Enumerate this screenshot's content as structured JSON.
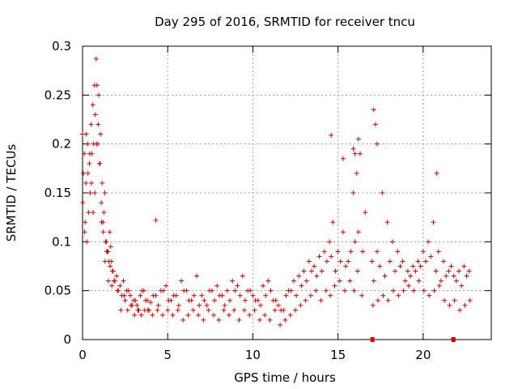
{
  "chart_data": {
    "type": "scatter",
    "title": "Day 295 of 2016, SRMTID for receiver tncu",
    "xlabel": "GPS time / hours",
    "ylabel": "SRMTID / TECUs",
    "xlim": [
      0,
      24
    ],
    "ylim": [
      0,
      0.3
    ],
    "xticks": [
      0,
      5,
      10,
      15,
      20
    ],
    "xtick_labels": [
      "0",
      "5",
      "10",
      "15",
      "20"
    ],
    "yticks": [
      0,
      0.05,
      0.1,
      0.15,
      0.2,
      0.25,
      0.3
    ],
    "ytick_labels": [
      "0",
      "0.05",
      "0.1",
      "0.15",
      "0.2",
      "0.25",
      "0.3"
    ],
    "grid": true,
    "marker": "+",
    "color": "#dd0000",
    "series": [
      {
        "name": "SRMTID",
        "x": [
          0.0,
          0.1,
          0.2,
          0.3,
          0.4,
          0.5,
          0.6,
          0.7,
          0.8,
          0.85,
          0.9,
          1.0,
          1.1,
          1.2,
          1.3,
          1.4,
          1.5,
          1.6,
          1.7,
          1.8,
          2.0,
          2.2,
          2.4,
          2.6,
          2.8,
          3.0,
          3.2,
          3.4,
          3.6,
          3.8,
          4.0,
          4.3,
          4.6,
          4.9,
          5.2,
          5.5,
          5.8,
          6.1,
          6.4,
          6.7,
          7.0,
          7.3,
          7.6,
          7.9,
          8.2,
          8.5,
          8.8,
          9.1,
          9.4,
          9.7,
          10.0,
          10.3,
          10.6,
          10.9,
          11.2,
          11.5,
          11.8,
          12.1,
          12.4,
          12.7,
          13.0,
          13.3,
          13.6,
          13.9,
          14.2,
          14.5,
          14.7,
          15.0,
          15.3,
          15.6,
          15.9,
          16.1,
          16.3,
          16.6,
          17.0,
          17.3,
          17.6,
          17.9,
          18.2,
          18.5,
          18.8,
          19.1,
          19.4,
          19.7,
          20.0,
          20.3,
          20.6,
          20.9,
          21.2,
          21.5,
          21.8,
          22.1,
          22.4,
          22.7,
          0.05,
          0.15,
          0.25,
          0.35,
          0.45,
          0.55,
          0.65,
          0.75,
          0.95,
          1.05,
          1.15,
          1.25,
          1.35,
          1.45,
          1.55,
          1.65,
          1.75,
          1.9,
          2.1,
          2.3,
          2.5,
          2.7,
          2.9,
          3.1,
          3.3,
          3.5,
          3.7,
          3.9,
          4.15,
          4.45,
          4.75,
          5.05,
          5.35,
          5.65,
          5.95,
          6.25,
          6.55,
          6.85,
          7.15,
          7.45,
          7.75,
          8.05,
          8.35,
          8.65,
          8.95,
          9.25,
          9.55,
          9.85,
          10.15,
          10.45,
          10.75,
          11.05,
          11.35,
          11.65,
          11.95,
          12.25,
          12.55,
          12.85,
          13.15,
          13.45,
          13.75,
          14.05,
          14.35,
          14.6,
          14.85,
          15.15,
          15.45,
          15.75,
          16.0,
          16.2,
          16.45,
          17.1,
          17.45,
          17.75,
          18.05,
          18.35,
          18.65,
          18.95,
          19.25,
          19.55,
          19.85,
          20.15,
          20.45,
          20.75,
          21.05,
          21.35,
          21.65,
          21.95,
          22.25,
          22.55,
          0.02,
          0.12,
          0.22,
          0.32,
          0.42,
          0.52,
          0.62,
          0.72,
          0.82,
          0.92,
          1.02,
          1.12,
          1.22,
          1.32,
          1.42,
          1.52,
          1.62,
          1.72,
          1.85,
          2.05,
          2.25,
          2.45,
          2.65,
          2.85,
          3.05,
          3.25,
          3.45,
          3.65,
          3.85,
          4.1,
          4.4,
          4.7,
          5.0,
          5.3,
          5.6,
          5.9,
          6.2,
          6.5,
          6.8,
          7.1,
          7.4,
          7.7,
          8.0,
          8.3,
          8.6,
          8.9,
          9.2,
          9.5,
          9.8,
          10.1,
          10.4,
          10.7,
          11.0,
          11.3,
          11.6,
          11.9,
          12.2,
          12.5,
          12.8,
          13.1,
          13.4,
          13.7,
          14.0,
          14.3,
          14.55,
          14.8,
          15.1,
          15.4,
          15.7,
          15.95,
          16.15,
          16.4,
          17.05,
          17.35,
          17.65,
          17.95,
          18.25,
          18.55,
          18.85,
          19.15,
          19.45,
          19.75,
          20.05,
          20.35,
          20.65,
          20.95,
          21.25,
          21.55,
          21.85,
          22.15,
          22.45,
          22.75,
          4.3,
          14.6,
          15.9,
          16.2,
          17.1,
          17.2,
          17.3,
          20.8,
          15.3,
          16.0
        ],
        "y": [
          0.21,
          0.19,
          0.16,
          0.2,
          0.18,
          0.22,
          0.24,
          0.26,
          0.287,
          0.26,
          0.2,
          0.18,
          0.14,
          0.12,
          0.15,
          0.1,
          0.09,
          0.11,
          0.08,
          0.07,
          0.065,
          0.055,
          0.06,
          0.05,
          0.045,
          0.04,
          0.035,
          0.045,
          0.05,
          0.04,
          0.038,
          0.045,
          0.05,
          0.055,
          0.04,
          0.045,
          0.06,
          0.05,
          0.04,
          0.065,
          0.045,
          0.035,
          0.05,
          0.055,
          0.045,
          0.05,
          0.06,
          0.055,
          0.065,
          0.05,
          0.045,
          0.04,
          0.055,
          0.06,
          0.04,
          0.035,
          0.03,
          0.05,
          0.06,
          0.065,
          0.07,
          0.08,
          0.075,
          0.085,
          0.09,
          0.1,
          0.12,
          0.09,
          0.11,
          0.08,
          0.15,
          0.17,
          0.19,
          0.13,
          0.08,
          0.09,
          0.15,
          0.12,
          0.1,
          0.09,
          0.08,
          0.07,
          0.075,
          0.08,
          0.09,
          0.1,
          0.12,
          0.09,
          0.08,
          0.07,
          0.065,
          0.07,
          0.075,
          0.07,
          0.17,
          0.12,
          0.1,
          0.13,
          0.15,
          0.19,
          0.2,
          0.23,
          0.25,
          0.21,
          0.16,
          0.13,
          0.1,
          0.09,
          0.08,
          0.095,
          0.07,
          0.06,
          0.05,
          0.045,
          0.04,
          0.05,
          0.035,
          0.04,
          0.03,
          0.05,
          0.04,
          0.03,
          0.045,
          0.035,
          0.05,
          0.04,
          0.045,
          0.035,
          0.05,
          0.04,
          0.045,
          0.035,
          0.04,
          0.05,
          0.04,
          0.045,
          0.035,
          0.04,
          0.05,
          0.045,
          0.04,
          0.05,
          0.04,
          0.035,
          0.045,
          0.05,
          0.04,
          0.03,
          0.045,
          0.05,
          0.045,
          0.055,
          0.06,
          0.07,
          0.065,
          0.07,
          0.08,
          0.085,
          0.07,
          0.08,
          0.075,
          0.09,
          0.1,
          0.11,
          0.09,
          0.06,
          0.075,
          0.065,
          0.08,
          0.07,
          0.075,
          0.06,
          0.065,
          0.07,
          0.075,
          0.08,
          0.085,
          0.07,
          0.06,
          0.065,
          0.075,
          0.06,
          0.055,
          0.065,
          0.14,
          0.11,
          0.21,
          0.17,
          0.19,
          0.16,
          0.13,
          0.15,
          0.2,
          0.22,
          0.18,
          0.12,
          0.11,
          0.08,
          0.09,
          0.06,
          0.075,
          0.055,
          0.06,
          0.05,
          0.03,
          0.045,
          0.03,
          0.035,
          0.025,
          0.03,
          0.025,
          0.03,
          0.03,
          0.025,
          0.03,
          0.025,
          0.03,
          0.025,
          0.03,
          0.02,
          0.025,
          0.03,
          0.025,
          0.02,
          0.03,
          0.025,
          0.02,
          0.03,
          0.025,
          0.03,
          0.02,
          0.03,
          0.025,
          0.03,
          0.02,
          0.025,
          0.02,
          0.03,
          0.015,
          0.02,
          0.025,
          0.03,
          0.035,
          0.04,
          0.045,
          0.05,
          0.04,
          0.05,
          0.045,
          0.055,
          0.06,
          0.05,
          0.06,
          0.05,
          0.07,
          0.045,
          0.035,
          0.04,
          0.045,
          0.04,
          0.05,
          0.045,
          0.05,
          0.055,
          0.05,
          0.06,
          0.05,
          0.045,
          0.05,
          0.055,
          0.04,
          0.035,
          0.04,
          0.03,
          0.035,
          0.04,
          0.122,
          0.209,
          0.195,
          0.205,
          0.235,
          0.22,
          0.2,
          0.17,
          0.185,
          0.19
        ]
      }
    ],
    "flag_markers": {
      "y": 0,
      "x_ranges": [
        [
          16.95,
          17.05
        ],
        [
          21.7,
          21.85
        ]
      ]
    }
  }
}
